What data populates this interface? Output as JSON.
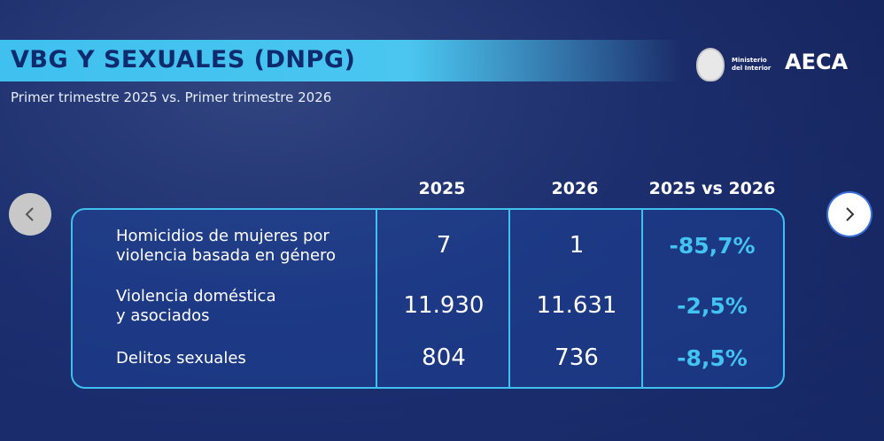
{
  "header": {
    "title": "VBG Y SEXUALES (DNPG)",
    "subtitle": "Primer trimestre 2025 vs. Primer trimestre 2026",
    "logos": [
      "Ministerio\ndel Interior",
      "AECA"
    ]
  },
  "table": {
    "columns": [
      "2025",
      "2026",
      "2025 vs 2026"
    ],
    "rows": [
      [
        "Homicidios de mujeres por\nviolencia basada en género",
        "7",
        "1",
        "-85,7%"
      ],
      [
        "Violencia doméstica\ny asociados",
        "11.930",
        "11.631",
        "-2,5%"
      ],
      [
        "Delitos sexuales",
        "804",
        "736",
        "-8,5%"
      ]
    ]
  }
}
